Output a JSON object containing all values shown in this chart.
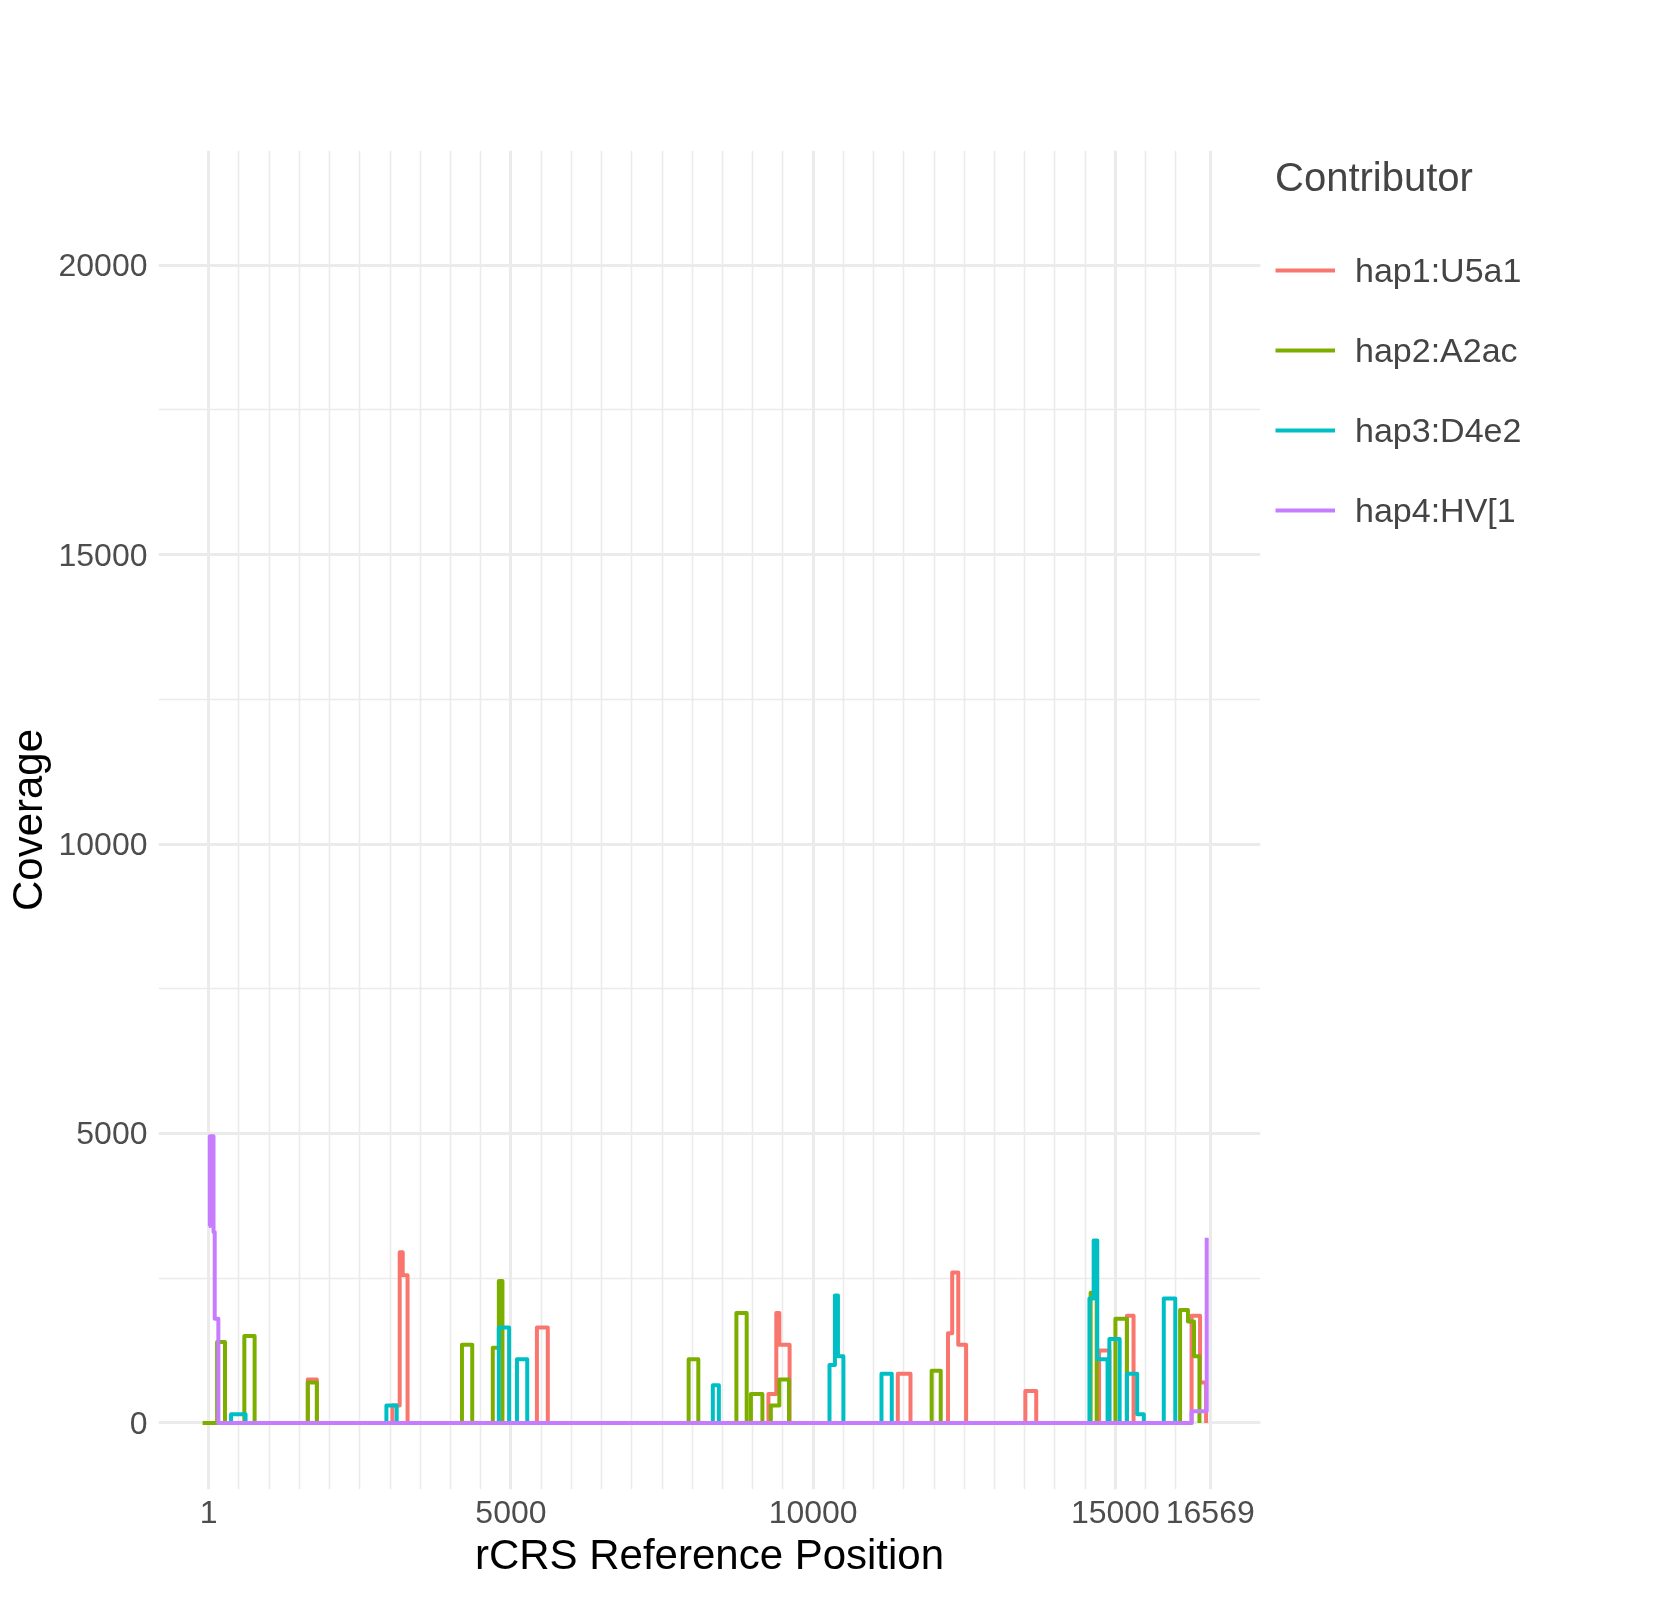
{
  "chart_data": {
    "type": "step",
    "xlabel": "rCRS Reference Position",
    "ylabel": "Coverage",
    "legend_title": "Contributor",
    "legend": "right",
    "grid": true,
    "xlim": [
      -830,
      17400
    ],
    "ylim": [
      -1150,
      21980
    ],
    "xticks": [
      1,
      {
        "value": 500,
        "label": null
      },
      {
        "value": 1000,
        "label": null
      },
      {
        "value": 1500,
        "label": null
      },
      {
        "value": 2000,
        "label": null
      },
      {
        "value": 2500,
        "label": null
      },
      {
        "value": 3000,
        "label": null
      },
      {
        "value": 3500,
        "label": null
      },
      {
        "value": 4000,
        "label": null
      },
      {
        "value": 4500,
        "label": null
      },
      5000,
      {
        "value": 5500,
        "label": null
      },
      {
        "value": 6000,
        "label": null
      },
      {
        "value": 6500,
        "label": null
      },
      {
        "value": 7000,
        "label": null
      },
      {
        "value": 7500,
        "label": null
      },
      {
        "value": 8000,
        "label": null
      },
      {
        "value": 8500,
        "label": null
      },
      {
        "value": 9000,
        "label": null
      },
      {
        "value": 9500,
        "label": null
      },
      10000,
      {
        "value": 10500,
        "label": null
      },
      {
        "value": 11000,
        "label": null
      },
      {
        "value": 11500,
        "label": null
      },
      {
        "value": 12000,
        "label": null
      },
      {
        "value": 12500,
        "label": null
      },
      {
        "value": 13000,
        "label": null
      },
      {
        "value": 13500,
        "label": null
      },
      {
        "value": 14000,
        "label": null
      },
      {
        "value": 14500,
        "label": null
      },
      15000,
      {
        "value": 15500,
        "label": null
      },
      {
        "value": 16000,
        "label": null
      },
      16569
    ],
    "yticks": [
      0,
      {
        "value": 2500,
        "label": null
      },
      5000,
      {
        "value": 7500,
        "label": null
      },
      10000,
      {
        "value": 12500,
        "label": null
      },
      15000,
      {
        "value": 17500,
        "label": null
      },
      20000
    ],
    "series": [
      {
        "name": "hap1:U5a1",
        "color": "#f8766d",
        "x": [
          1500,
          1640,
          1790,
          3040,
          3160,
          3210,
          3290,
          5390,
          5430,
          5610,
          6190,
          6300,
          9260,
          9390,
          9440,
          9610,
          11300,
          11400,
          11610,
          12150,
          12230,
          12300,
          12400,
          12530,
          13450,
          13510,
          13690,
          14650,
          14730,
          14900,
          15190,
          15300,
          16200,
          16260,
          16400,
          16500
        ],
        "values": [
          0,
          750,
          0,
          300,
          2950,
          2550,
          0,
          0,
          1650,
          0,
          0,
          0,
          500,
          1900,
          1350,
          0,
          0,
          850,
          0,
          0,
          1550,
          2600,
          1350,
          0,
          0,
          550,
          0,
          0,
          1250,
          0,
          1850,
          0,
          0,
          1850,
          700,
          0
        ]
      },
      {
        "name": "hap2:A2ac",
        "color": "#7cae00",
        "x": [
          -100,
          140,
          270,
          590,
          760,
          1500,
          1640,
          1790,
          4100,
          4190,
          4360,
          4650,
          4700,
          4800,
          4860,
          7850,
          7940,
          8100,
          8730,
          8900,
          8970,
          9160,
          9300,
          9440,
          9600,
          11900,
          11960,
          12110,
          14550,
          14590,
          14690,
          15000,
          15190,
          16000,
          16070,
          16200,
          16300,
          16390
        ],
        "values": [
          0,
          1400,
          0,
          1500,
          0,
          0,
          700,
          0,
          0,
          1350,
          0,
          0,
          1300,
          2450,
          0,
          0,
          1100,
          0,
          1900,
          0,
          500,
          0,
          300,
          750,
          0,
          0,
          900,
          0,
          0,
          2250,
          0,
          1800,
          0,
          0,
          1950,
          1750,
          1150,
          0
        ]
      },
      {
        "name": "hap3:D4e2",
        "color": "#00bfc4",
        "x": [
          300,
          370,
          610,
          2900,
          2940,
          3110,
          4750,
          4800,
          4970,
          5100,
          5270,
          8300,
          8340,
          8440,
          10200,
          10270,
          10360,
          10410,
          10500,
          11050,
          11130,
          11300,
          14500,
          14570,
          14640,
          14700,
          14870,
          14900,
          15070,
          15190,
          15360,
          15470,
          15750,
          15800,
          15990
        ],
        "values": [
          0,
          150,
          0,
          0,
          300,
          0,
          0,
          1650,
          0,
          1100,
          0,
          0,
          650,
          0,
          0,
          1000,
          2200,
          1150,
          0,
          0,
          850,
          0,
          0,
          2150,
          3150,
          1100,
          0,
          1450,
          0,
          850,
          150,
          0,
          0,
          2150,
          0
        ]
      },
      {
        "name": "hap4:HV[1",
        "color": "#c77cff",
        "x": [
          1,
          20,
          80,
          100,
          160,
          14600,
          16100,
          16260,
          16510
        ],
        "values": [
          3400,
          4950,
          3300,
          1800,
          0,
          0,
          0,
          200,
          3200
        ]
      }
    ]
  }
}
